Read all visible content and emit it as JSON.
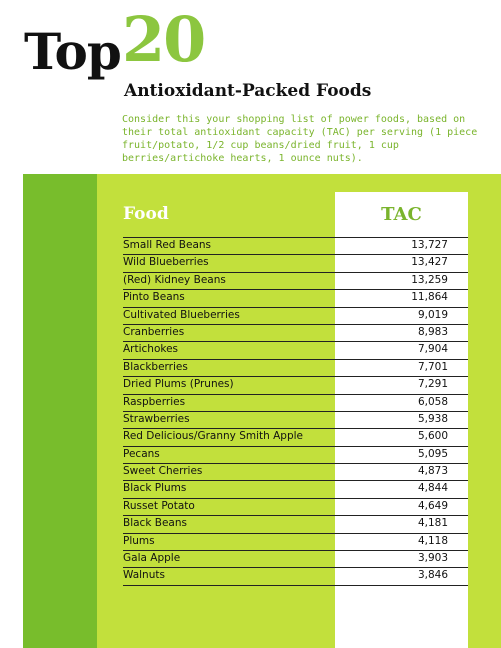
{
  "title": {
    "top": "Top",
    "number": "20"
  },
  "subtitle": "Antioxidant-Packed Foods",
  "intro": "Consider this your shopping list of power foods, based on their total antioxidant capacity (TAC) per serving (1 piece fruit/potato, 1/2 cup beans/dried fruit, 1 cup berries/artichoke hearts, 1 ounce nuts).",
  "colors": {
    "dark_green": "#78bd2c",
    "light_green": "#c2e03c",
    "title_green": "#8cc63f"
  },
  "table": {
    "headers": {
      "food": "Food",
      "tac": "TAC"
    },
    "rows": [
      {
        "food": "Small Red Beans",
        "tac": "13,727"
      },
      {
        "food": "Wild Blueberries",
        "tac": "13,427"
      },
      {
        "food": "(Red) Kidney Beans",
        "tac": "13,259"
      },
      {
        "food": "Pinto Beans",
        "tac": "11,864"
      },
      {
        "food": "Cultivated Blueberries",
        "tac": "9,019"
      },
      {
        "food": "Cranberries",
        "tac": "8,983"
      },
      {
        "food": "Artichokes",
        "tac": "7,904"
      },
      {
        "food": "Blackberries",
        "tac": "7,701"
      },
      {
        "food": "Dried Plums (Prunes)",
        "tac": "7,291"
      },
      {
        "food": "Raspberries",
        "tac": "6,058"
      },
      {
        "food": "Strawberries",
        "tac": "5,938"
      },
      {
        "food": "Red Delicious/Granny Smith Apple",
        "tac": "5,600"
      },
      {
        "food": "Pecans",
        "tac": "5,095"
      },
      {
        "food": "Sweet Cherries",
        "tac": "4,873"
      },
      {
        "food": "Black Plums",
        "tac": "4,844"
      },
      {
        "food": "Russet Potato",
        "tac": "4,649"
      },
      {
        "food": "Black Beans",
        "tac": "4,181"
      },
      {
        "food": "Plums",
        "tac": "4,118"
      },
      {
        "food": "Gala Apple",
        "tac": "3,903"
      },
      {
        "food": "Walnuts",
        "tac": "3,846"
      }
    ]
  }
}
